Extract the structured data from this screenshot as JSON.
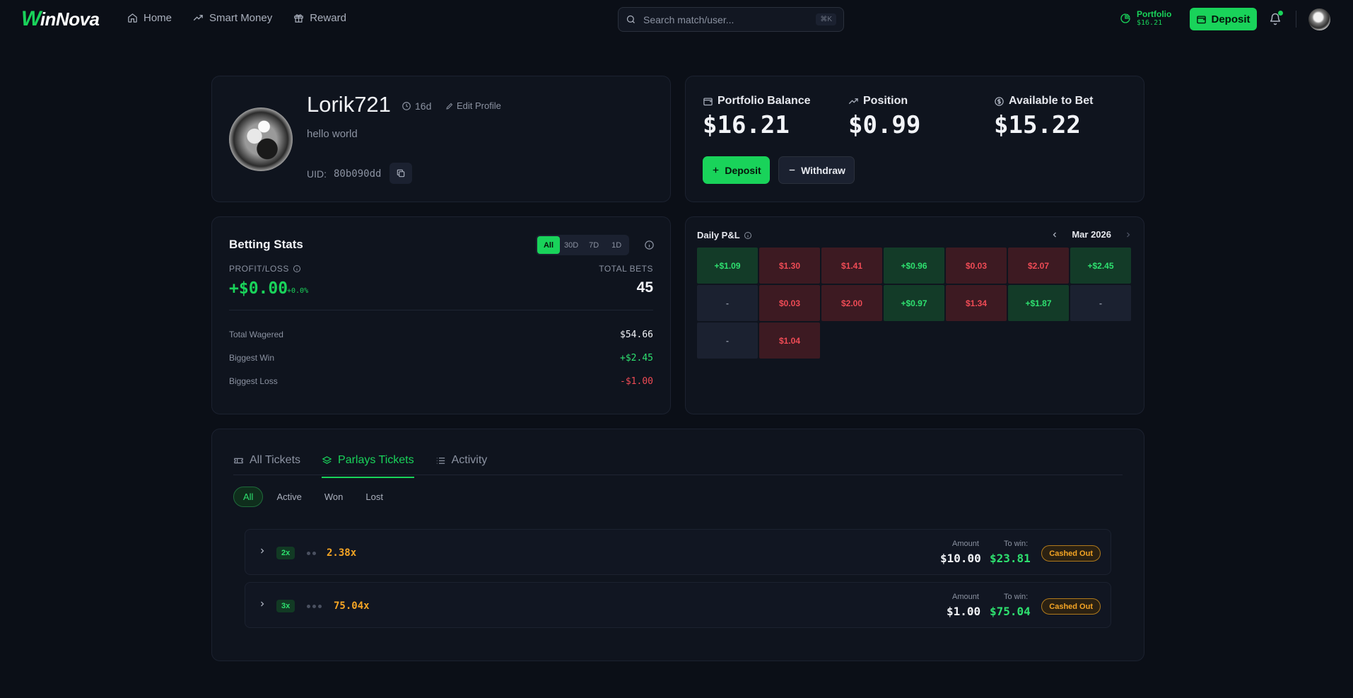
{
  "nav": {
    "logo_w": "W",
    "logo_rest": "inNova",
    "links": [
      {
        "label": "Home",
        "icon": "home-icon"
      },
      {
        "label": "Smart Money",
        "icon": "trending-icon"
      },
      {
        "label": "Reward",
        "icon": "gift-icon"
      }
    ],
    "search_placeholder": "Search match/user...",
    "search_shortcut": "⌘K",
    "portfolio_label": "Portfolio",
    "portfolio_value": "$16.21",
    "deposit_label": "Deposit"
  },
  "profile": {
    "username": "Lorik721",
    "age": "16d",
    "edit_label": "Edit Profile",
    "bio": "hello world",
    "uid_label": "UID:",
    "uid_value": "80b090dd"
  },
  "balance": {
    "portfolio_label": "Portfolio Balance",
    "portfolio_value": "$16.21",
    "position_label": "Position",
    "position_value": "$0.99",
    "available_label": "Available to Bet",
    "available_value": "$15.22",
    "deposit_label": "Deposit",
    "withdraw_label": "Withdraw"
  },
  "betting_stats": {
    "title": "Betting Stats",
    "ranges": [
      "All",
      "30D",
      "7D",
      "1D"
    ],
    "active_range": "All",
    "pl_label": "PROFIT/LOSS",
    "pl_value": "+$0.00",
    "pl_pct": "+0.0%",
    "total_bets_label": "TOTAL BETS",
    "total_bets_value": "45",
    "rows": [
      {
        "label": "Total Wagered",
        "value": "$54.66",
        "tone": "neutral"
      },
      {
        "label": "Biggest Win",
        "value": "+$2.45",
        "tone": "pos"
      },
      {
        "label": "Biggest Loss",
        "value": "-$1.00",
        "tone": "neg"
      }
    ]
  },
  "daily_pnl": {
    "title": "Daily P&L",
    "month": "Mar 2026",
    "cells": [
      {
        "text": "+$1.09",
        "tone": "pos"
      },
      {
        "text": "$1.30",
        "tone": "neg"
      },
      {
        "text": "$1.41",
        "tone": "neg"
      },
      {
        "text": "+$0.96",
        "tone": "pos"
      },
      {
        "text": "$0.03",
        "tone": "neg"
      },
      {
        "text": "$2.07",
        "tone": "neg"
      },
      {
        "text": "+$2.45",
        "tone": "pos"
      },
      {
        "text": "-",
        "tone": "none"
      },
      {
        "text": "$0.03",
        "tone": "neg"
      },
      {
        "text": "$2.00",
        "tone": "neg"
      },
      {
        "text": "+$0.97",
        "tone": "pos"
      },
      {
        "text": "$1.34",
        "tone": "neg"
      },
      {
        "text": "+$1.87",
        "tone": "pos"
      },
      {
        "text": "-",
        "tone": "none"
      },
      {
        "text": "-",
        "tone": "none"
      },
      {
        "text": "$1.04",
        "tone": "neg"
      }
    ]
  },
  "tickets": {
    "tabs": [
      {
        "label": "All Tickets",
        "icon": "ticket-icon",
        "active": false
      },
      {
        "label": "Parlays Tickets",
        "icon": "layers-icon",
        "active": true
      },
      {
        "label": "Activity",
        "icon": "list-icon",
        "active": false
      }
    ],
    "filters": [
      "All",
      "Active",
      "Won",
      "Lost"
    ],
    "active_filter": "All",
    "amount_label": "Amount",
    "to_win_label": "To win:",
    "items": [
      {
        "legs": "2x",
        "dots": 2,
        "odds": "2.38x",
        "amount": "$10.00",
        "to_win": "$23.81",
        "status": "Cashed Out"
      },
      {
        "legs": "3x",
        "dots": 3,
        "odds": "75.04x",
        "amount": "$1.00",
        "to_win": "$75.04",
        "status": "Cashed Out"
      }
    ]
  },
  "colors": {
    "accent": "#19d35a",
    "background": "#0b0f17",
    "card": "#0f141e",
    "negative": "#ef4b55",
    "warning": "#f5a524"
  }
}
